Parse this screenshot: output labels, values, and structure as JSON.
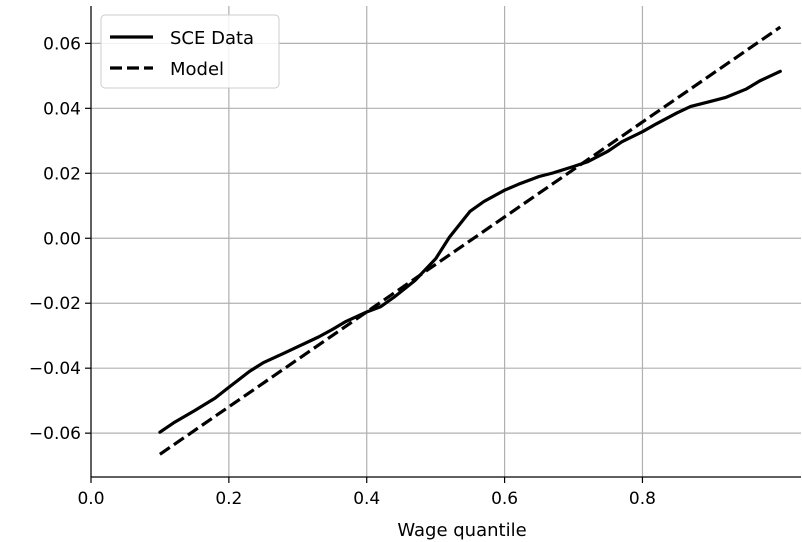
{
  "chart_data": {
    "type": "line",
    "xlabel": "Wage quantile",
    "ylabel": "",
    "xlim": [
      0.0,
      1.03
    ],
    "ylim": [
      -0.0735,
      0.0715
    ],
    "xticks": [
      0.0,
      0.2,
      0.4,
      0.6,
      0.8
    ],
    "xtick_labels": [
      "0.0",
      "0.2",
      "0.4",
      "0.6",
      "0.8"
    ],
    "yticks": [
      -0.06,
      -0.04,
      -0.02,
      0.0,
      0.02,
      0.04,
      0.06
    ],
    "ytick_labels": [
      "−0.06",
      "−0.04",
      "−0.02",
      "0.00",
      "0.02",
      "0.04",
      "0.06"
    ],
    "grid": true,
    "legend_position": "top-left",
    "series": [
      {
        "name": "SCE Data",
        "style": "solid",
        "color": "#000000",
        "x": [
          0.1,
          0.12,
          0.15,
          0.18,
          0.2,
          0.23,
          0.25,
          0.28,
          0.3,
          0.33,
          0.35,
          0.37,
          0.4,
          0.42,
          0.44,
          0.47,
          0.5,
          0.52,
          0.55,
          0.57,
          0.6,
          0.62,
          0.65,
          0.67,
          0.7,
          0.72,
          0.75,
          0.77,
          0.8,
          0.82,
          0.85,
          0.87,
          0.9,
          0.92,
          0.95,
          0.97,
          1.0
        ],
        "y": [
          -0.0597,
          -0.0568,
          -0.0531,
          -0.0492,
          -0.0459,
          -0.041,
          -0.0383,
          -0.0354,
          -0.0334,
          -0.0304,
          -0.0281,
          -0.0256,
          -0.0227,
          -0.0211,
          -0.0181,
          -0.013,
          -0.0063,
          0.0003,
          0.0083,
          0.0113,
          0.0148,
          0.0166,
          0.019,
          0.0201,
          0.0221,
          0.0235,
          0.0268,
          0.0297,
          0.0328,
          0.0352,
          0.0386,
          0.0406,
          0.0422,
          0.0433,
          0.0459,
          0.0484,
          0.0514
        ]
      },
      {
        "name": "Model",
        "style": "dashed",
        "color": "#000000",
        "x": [
          0.1,
          1.0
        ],
        "y": [
          -0.0665,
          0.065
        ]
      }
    ]
  }
}
